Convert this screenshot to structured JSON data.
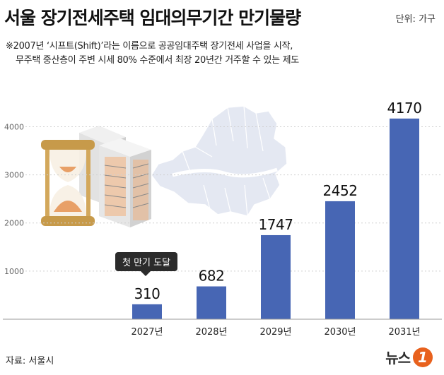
{
  "header": {
    "title": "서울 장기전세주택 임대의무기간 만기물량",
    "unit": "단위: 가구"
  },
  "note": {
    "line1": "※2007년 ‘시프트(Shift)’라는 이름으로 공공임대주택 장기전세 사업을 시작,",
    "line2": "무주택 중산층이 주변 시세 80% 수준에서 최장 20년간 거주할 수 있는 제도"
  },
  "callout": "첫 만기 도달",
  "source": "자료: 서울시",
  "logo": {
    "text": "뉴스",
    "mark": "1"
  },
  "colors": {
    "bar": "#4766b4",
    "grid": "#cfcfcf",
    "map": "#e4e8f2"
  },
  "chart_data": {
    "type": "bar",
    "categories": [
      "2027년",
      "2028년",
      "2029년",
      "2030년",
      "2031년"
    ],
    "values": [
      310,
      682,
      1747,
      2452,
      4170
    ],
    "yticks": [
      1000,
      2000,
      3000,
      4000
    ],
    "ylim": [
      0,
      4300
    ],
    "grid": true
  }
}
